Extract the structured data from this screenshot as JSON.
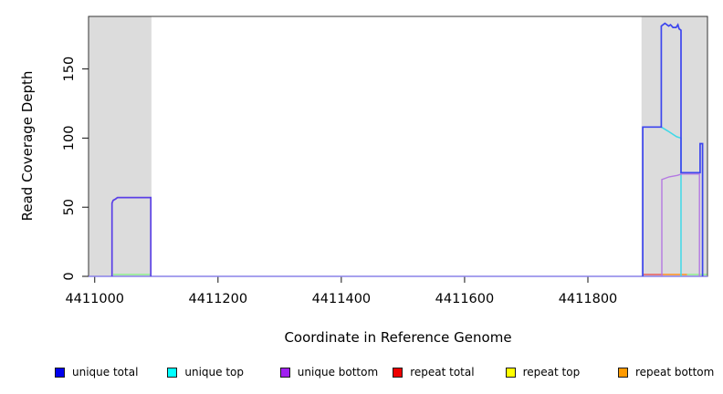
{
  "chart_data": {
    "type": "line",
    "title": "",
    "xlabel": "Coordinate in Reference Genome",
    "ylabel": "Read Coverage Depth",
    "xlim": [
      4410990,
      4411994
    ],
    "ylim": [
      0,
      188
    ],
    "x_ticks": [
      "4411000",
      "4411200",
      "4411400",
      "4411600",
      "4411800"
    ],
    "x_tick_values": [
      4411000,
      4411200,
      4411400,
      4411600,
      4411800
    ],
    "y_ticks": [
      "0",
      "50",
      "100",
      "150"
    ],
    "y_tick_values": [
      0,
      50,
      100,
      150
    ],
    "grid": false,
    "plot_background": "#ffffff",
    "highlight_band_color": "#dcdcdc",
    "highlight_bands": [
      {
        "start": 4410990,
        "end": 4411092
      },
      {
        "start": 4411887,
        "end": 4411994
      }
    ],
    "legend": {
      "position": "bottom",
      "items": [
        {
          "label": "unique total",
          "color": "#0000ee"
        },
        {
          "label": "unique top",
          "color": "#00ffff"
        },
        {
          "label": "unique bottom",
          "color": "#a020f0"
        },
        {
          "label": "repeat total",
          "color": "#ee0000"
        },
        {
          "label": "repeat top",
          "color": "#ffff00"
        },
        {
          "label": "repeat bottom",
          "color": "#ff9a00"
        }
      ]
    },
    "series": [
      {
        "name": "zero-baseline",
        "color": "#8a82e8",
        "width": 1.5,
        "points": [
          [
            4410990,
            0
          ],
          [
            4411994,
            0
          ]
        ]
      },
      {
        "name": "green-segment-left",
        "color": "#90ee90",
        "width": 1.4,
        "points": [
          [
            4411030,
            1.3
          ],
          [
            4411090,
            1.3
          ]
        ]
      },
      {
        "name": "red-segment-right",
        "color": "#e85c5c",
        "width": 1.4,
        "points": [
          [
            4411890,
            1.3
          ],
          [
            4411922,
            1.3
          ]
        ]
      },
      {
        "name": "orange-segment-right",
        "color": "#ff9020",
        "width": 1.6,
        "points": [
          [
            4411922,
            1.3
          ],
          [
            4411961,
            1.3
          ]
        ]
      },
      {
        "name": "green-segment-right",
        "color": "#90ee90",
        "width": 1.4,
        "points": [
          [
            4411961,
            1.3
          ],
          [
            4411993,
            1.3
          ]
        ]
      },
      {
        "name": "unique-top-right",
        "color": "#3fd9e8",
        "width": 1.5,
        "points": [
          [
            4411889,
            108
          ],
          [
            4411919,
            108
          ],
          [
            4411930,
            105
          ],
          [
            4411944,
            101
          ],
          [
            4411951,
            100
          ],
          [
            4411951,
            0
          ]
        ]
      },
      {
        "name": "unique-bottom-right",
        "color": "#b479e2",
        "width": 1.4,
        "points": [
          [
            4411920,
            0
          ],
          [
            4411920,
            70
          ],
          [
            4411932,
            72
          ],
          [
            4411945,
            73
          ],
          [
            4411952,
            74
          ],
          [
            4411981,
            74
          ],
          [
            4411981,
            0
          ]
        ]
      },
      {
        "name": "unique-total-left-peak",
        "color": "#5a3fe6",
        "width": 1.7,
        "points": [
          [
            4411028,
            0
          ],
          [
            4411028,
            53
          ],
          [
            4411030,
            55
          ],
          [
            4411034,
            56
          ],
          [
            4411037,
            57
          ],
          [
            4411091,
            57
          ],
          [
            4411091,
            0
          ]
        ]
      },
      {
        "name": "unique-total-right",
        "color": "#3c45ee",
        "width": 1.7,
        "points": [
          [
            4411889,
            0
          ],
          [
            4411889,
            108
          ],
          [
            4411919,
            108
          ],
          [
            4411919,
            181
          ],
          [
            4411925,
            183
          ],
          [
            4411931,
            181
          ],
          [
            4411934,
            182
          ],
          [
            4411938,
            180
          ],
          [
            4411943,
            180
          ],
          [
            4411946,
            182
          ],
          [
            4411948,
            179
          ],
          [
            4411951,
            178
          ],
          [
            4411951,
            75
          ],
          [
            4411982,
            75
          ],
          [
            4411982,
            96
          ],
          [
            4411986,
            96
          ],
          [
            4411986,
            0
          ]
        ]
      }
    ]
  }
}
